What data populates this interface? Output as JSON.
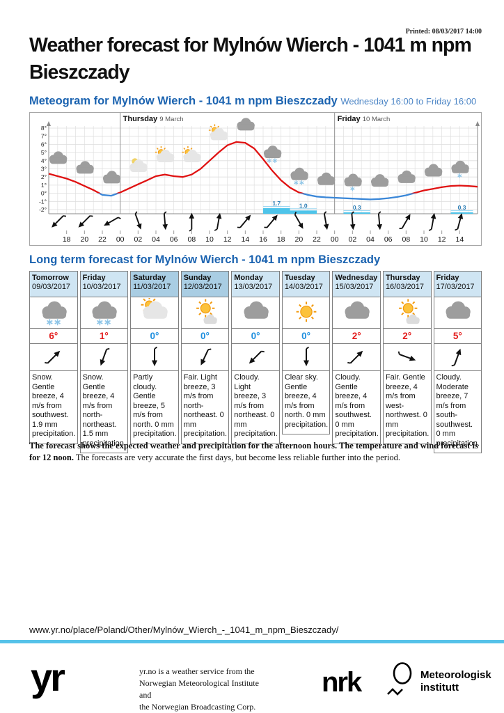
{
  "page": {
    "printed": "Printed: 08/03/2017 14:00",
    "title": "Weather forecast for Mylnów Wierch - 1041 m npm Bieszczady",
    "url": "www.yr.no/place/Poland/Other/Mylnów_Wierch_-_1041_m_npm_Bieszczady/"
  },
  "meteogram": {
    "heading": "Meteogram for Mylnów Wierch - 1041 m npm Bieszczady",
    "period": "Wednesday 16:00 to Friday 16:00"
  },
  "longterm": {
    "heading": "Long term forecast for Mylnów Wierch - 1041 m npm Bieszczady"
  },
  "chart_data": {
    "type": "line",
    "title": "Meteogram Wednesday 16:00 to Friday 16:00",
    "x_start_label": "Wednesday 16:00",
    "x_end_label": "Friday 16:00",
    "hours_span": 48,
    "day_labels": [
      {
        "name": "Thursday",
        "date": "9 March",
        "hour_offset": 8
      },
      {
        "name": "Friday",
        "date": "10 March",
        "hour_offset": 32
      }
    ],
    "y_ticks": [
      "8°",
      "7°",
      "6°",
      "5°",
      "4°",
      "3°",
      "2°",
      "1°",
      "0°",
      "-1°",
      "-2°"
    ],
    "ylim": [
      -2.5,
      8.6
    ],
    "temp_unit": "°C",
    "temperature_c_hourly": [
      2.4,
      2.1,
      1.8,
      1.4,
      0.9,
      0.4,
      -0.2,
      -0.3,
      0.1,
      0.6,
      1.1,
      1.6,
      2.1,
      2.3,
      2.1,
      2.0,
      2.3,
      3.0,
      4.0,
      5.0,
      5.9,
      6.3,
      6.2,
      5.5,
      4.2,
      2.8,
      1.6,
      0.7,
      0.1,
      -0.2,
      -0.4,
      -0.5,
      -0.55,
      -0.6,
      -0.65,
      -0.7,
      -0.75,
      -0.7,
      -0.6,
      -0.45,
      -0.25,
      0.05,
      0.35,
      0.55,
      0.75,
      0.9,
      0.95,
      0.9,
      0.8
    ],
    "precipitation_mm": [
      {
        "from_hour": 24,
        "to_hour": 27,
        "mm": 1.7
      },
      {
        "from_hour": 27,
        "to_hour": 30,
        "mm": 1.0
      },
      {
        "from_hour": 33,
        "to_hour": 36,
        "mm": 0.3
      },
      {
        "from_hour": 45,
        "to_hour": 47.5,
        "mm": 0.3
      }
    ],
    "weather_icons": [
      {
        "hour": 1,
        "type": "cloudy"
      },
      {
        "hour": 4,
        "type": "cloudy"
      },
      {
        "hour": 7,
        "type": "cloudy"
      },
      {
        "hour": 10,
        "type": "mooncloud"
      },
      {
        "hour": 13,
        "type": "partlycloudy"
      },
      {
        "hour": 16,
        "type": "partlycloudy"
      },
      {
        "hour": 19,
        "type": "partlycloudy"
      },
      {
        "hour": 22,
        "type": "cloudy"
      },
      {
        "hour": 25,
        "type": "snow"
      },
      {
        "hour": 28,
        "type": "snow"
      },
      {
        "hour": 31,
        "type": "cloudy"
      },
      {
        "hour": 34,
        "type": "lightsnow"
      },
      {
        "hour": 37,
        "type": "cloudy"
      },
      {
        "hour": 40,
        "type": "cloudy"
      },
      {
        "hour": 43,
        "type": "cloudy"
      },
      {
        "hour": 46,
        "type": "lightsnow"
      }
    ],
    "wind_arrows_toward_deg": [
      {
        "hour": 1,
        "deg": 225
      },
      {
        "hour": 4,
        "deg": 225
      },
      {
        "hour": 7,
        "deg": 240
      },
      {
        "hour": 10,
        "deg": 160
      },
      {
        "hour": 13,
        "deg": 175
      },
      {
        "hour": 16,
        "deg": 0
      },
      {
        "hour": 19,
        "deg": 10
      },
      {
        "hour": 22,
        "deg": 40
      },
      {
        "hour": 25,
        "deg": 40
      },
      {
        "hour": 28,
        "deg": 150
      },
      {
        "hour": 31,
        "deg": 170
      },
      {
        "hour": 34,
        "deg": 175
      },
      {
        "hour": 37,
        "deg": 175
      },
      {
        "hour": 40,
        "deg": 30
      },
      {
        "hour": 43,
        "deg": 10
      },
      {
        "hour": 46,
        "deg": 15
      }
    ],
    "x_tick_labels": [
      "18",
      "20",
      "22",
      "00",
      "02",
      "04",
      "06",
      "08",
      "10",
      "12",
      "14",
      "16",
      "18",
      "20",
      "22",
      "00",
      "02",
      "04",
      "06",
      "08",
      "10",
      "12",
      "14"
    ]
  },
  "forecast_table": {
    "columns": [
      {
        "day": "Tomorrow",
        "date": "09/03/2017",
        "icon": "snow",
        "temp": "6°",
        "temp_color": "red",
        "wind_toward_deg": 45,
        "weekend": false,
        "description": "Snow. Gentle breeze, 4 m/s from southwest. 1.9 mm precipitation."
      },
      {
        "day": "Friday",
        "date": "10/03/2017",
        "icon": "snow",
        "temp": "1°",
        "temp_color": "red",
        "wind_toward_deg": 200,
        "weekend": false,
        "description": "Snow. Gentle breeze, 4 m/s from north-northeast. 1.5 mm precipitation."
      },
      {
        "day": "Saturday",
        "date": "11/03/2017",
        "icon": "partlycloudy",
        "temp": "0°",
        "temp_color": "blue",
        "wind_toward_deg": 180,
        "weekend": true,
        "description": "Partly cloudy. Gentle breeze, 5 m/s from north. 0 mm precipitation."
      },
      {
        "day": "Sunday",
        "date": "12/03/2017",
        "icon": "fair",
        "temp": "0°",
        "temp_color": "blue",
        "wind_toward_deg": 205,
        "weekend": true,
        "description": "Fair. Light breeze, 3 m/s from north-northeast. 0 mm precipitation."
      },
      {
        "day": "Monday",
        "date": "13/03/2017",
        "icon": "cloudy",
        "temp": "0°",
        "temp_color": "blue",
        "wind_toward_deg": 225,
        "weekend": false,
        "description": "Cloudy. Light breeze, 3 m/s from northeast. 0 mm precipitation."
      },
      {
        "day": "Tuesday",
        "date": "14/03/2017",
        "icon": "clearsky",
        "temp": "0°",
        "temp_color": "blue",
        "wind_toward_deg": 180,
        "weekend": false,
        "description": "Clear sky. Gentle breeze, 4 m/s from north. 0 mm precipitation."
      },
      {
        "day": "Wednesday",
        "date": "15/03/2017",
        "icon": "cloudy",
        "temp": "2°",
        "temp_color": "red",
        "wind_toward_deg": 45,
        "weekend": false,
        "description": "Cloudy. Gentle breeze, 4 m/s from southwest. 0 mm precipitation."
      },
      {
        "day": "Thursday",
        "date": "16/03/2017",
        "icon": "fair",
        "temp": "2°",
        "temp_color": "red",
        "wind_toward_deg": 110,
        "weekend": false,
        "description": "Fair. Gentle breeze, 4 m/s from west-northwest. 0 mm precipitation."
      },
      {
        "day": "Friday",
        "date": "17/03/2017",
        "icon": "cloudy",
        "temp": "5°",
        "temp_color": "red",
        "wind_toward_deg": 20,
        "weekend": false,
        "description": "Cloudy. Moderate breeze, 7 m/s from south-southwest. 0 mm precipitation."
      }
    ]
  },
  "note": {
    "bold": "The forecast shows the expected weather and precipitation for the afternoon hours. The temperature and wind forecast is for 12 noon.",
    "rest": "The forecasts are very accurate the first days, but become less reliable further into the period."
  },
  "footer": {
    "yr_logo": "yr",
    "service_lines": [
      "yr.no is a weather service from the",
      "Norwegian Meteorological Institute and",
      "the Norwegian Broadcasting Corp."
    ],
    "nrk_logo": "nrk",
    "met_logo_lines": [
      "Meteorologisk",
      "institutt"
    ]
  },
  "colors": {
    "heading_blue": "#1b63b0",
    "period_blue": "#4d86c6",
    "temp_red": "#e31b1b",
    "temp_blue": "#1e8fdf",
    "curve_red": "#e01212",
    "curve_blue": "#3a87d8",
    "precip_bar": "#4ec4ea",
    "precip_label": "#2a7cb5",
    "weekend_header": "#a9cde3",
    "day_header": "#cfe5f3",
    "rule_cyan": "#56c2e9"
  }
}
